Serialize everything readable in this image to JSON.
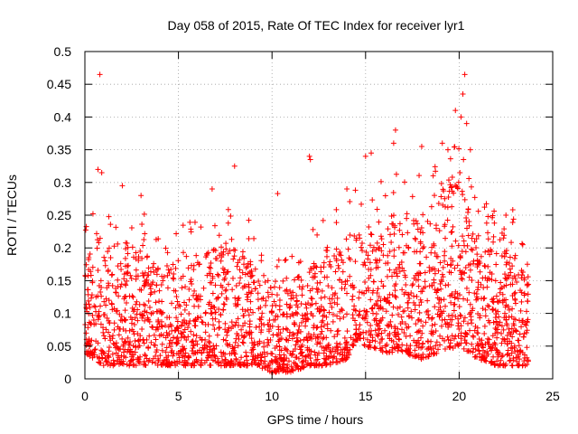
{
  "chart_data": {
    "type": "scatter",
    "title": "Day 058 of 2015, Rate Of TEC Index for receiver lyr1",
    "xlabel": "GPS time / hours",
    "ylabel": "ROTI / TECUs",
    "xlim": [
      0,
      25
    ],
    "ylim": [
      0,
      0.5
    ],
    "x_ticks": [
      0,
      5,
      10,
      15,
      20,
      25
    ],
    "x_tick_labels": [
      "0",
      "5",
      "10",
      "15",
      "20",
      "25"
    ],
    "y_ticks": [
      0,
      0.05,
      0.1,
      0.15,
      0.2,
      0.25,
      0.3,
      0.35,
      0.4,
      0.45,
      0.5
    ],
    "y_tick_labels": [
      "0",
      "0.05",
      "0.1",
      "0.15",
      "0.2",
      "0.25",
      "0.3",
      "0.35",
      "0.4",
      "0.45",
      "0.5"
    ],
    "grid": true,
    "grid_style": "dotted",
    "legend": "none",
    "marker": "plus",
    "marker_color": "#ff0000",
    "density_profile": {
      "hours": [
        0,
        0.5,
        1,
        2,
        3,
        4,
        5,
        6,
        7,
        8,
        9,
        10,
        11,
        12,
        13,
        14,
        14.5,
        15,
        16,
        17,
        18,
        19,
        20,
        21,
        22,
        23,
        23.7
      ],
      "typical_max": [
        0.17,
        0.24,
        0.2,
        0.22,
        0.2,
        0.17,
        0.18,
        0.19,
        0.21,
        0.2,
        0.18,
        0.15,
        0.15,
        0.17,
        0.2,
        0.2,
        0.24,
        0.23,
        0.25,
        0.26,
        0.25,
        0.3,
        0.3,
        0.22,
        0.2,
        0.2,
        0.17
      ],
      "typical_min": [
        0.04,
        0.03,
        0.02,
        0.02,
        0.02,
        0.02,
        0.02,
        0.02,
        0.02,
        0.02,
        0.02,
        0.01,
        0.01,
        0.02,
        0.02,
        0.03,
        0.06,
        0.05,
        0.04,
        0.04,
        0.03,
        0.04,
        0.05,
        0.03,
        0.02,
        0.02,
        0.02
      ]
    },
    "notable_points": [
      {
        "x": 0.8,
        "y": 0.465
      },
      {
        "x": 20.3,
        "y": 0.465
      },
      {
        "x": 19.8,
        "y": 0.41
      },
      {
        "x": 20.1,
        "y": 0.4
      },
      {
        "x": 20.2,
        "y": 0.435
      },
      {
        "x": 20.4,
        "y": 0.39
      },
      {
        "x": 16.6,
        "y": 0.38
      },
      {
        "x": 16.5,
        "y": 0.36
      },
      {
        "x": 0.7,
        "y": 0.32
      },
      {
        "x": 0.9,
        "y": 0.315
      },
      {
        "x": 8.0,
        "y": 0.325
      },
      {
        "x": 12.0,
        "y": 0.34
      },
      {
        "x": 12.05,
        "y": 0.335
      },
      {
        "x": 15.0,
        "y": 0.34
      },
      {
        "x": 15.3,
        "y": 0.345
      },
      {
        "x": 18.0,
        "y": 0.355
      },
      {
        "x": 19.1,
        "y": 0.36
      },
      {
        "x": 19.4,
        "y": 0.35
      },
      {
        "x": 20.6,
        "y": 0.35
      },
      {
        "x": 2.0,
        "y": 0.295
      },
      {
        "x": 10.3,
        "y": 0.283
      },
      {
        "x": 14.0,
        "y": 0.29
      },
      {
        "x": 22.5,
        "y": 0.25
      },
      {
        "x": 23.4,
        "y": 0.205
      },
      {
        "x": 3.0,
        "y": 0.28
      },
      {
        "x": 6.8,
        "y": 0.29
      }
    ]
  }
}
